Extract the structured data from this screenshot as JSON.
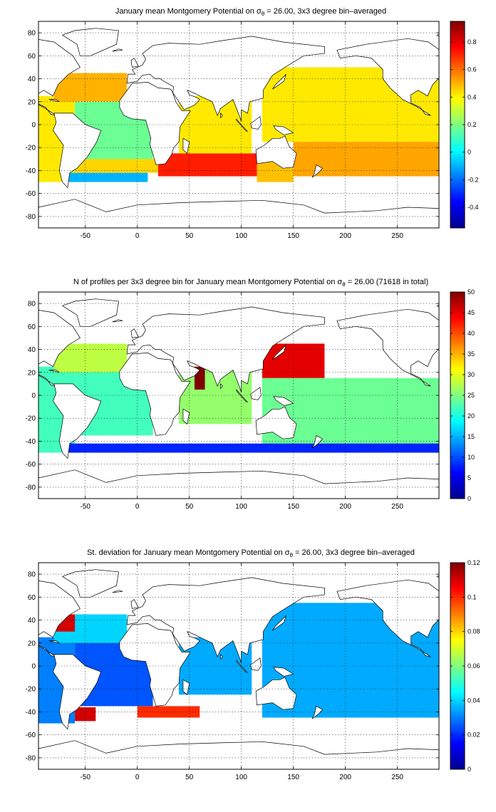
{
  "chart_data": [
    {
      "type": "heatmap",
      "title": {
        "prefix": "January mean Montgomery Potential on ",
        "sigma": "σ",
        "sub": "θ",
        "suffix": " = 26.00, 3x3 degree bin–averaged"
      },
      "x_ticks": [
        "-50",
        "0",
        "50",
        "100",
        "150",
        "200",
        "250"
      ],
      "y_ticks": [
        "80",
        "60",
        "40",
        "20",
        "0",
        "-20",
        "-40",
        "-60",
        "-80"
      ],
      "xlim": [
        -95,
        290
      ],
      "ylim": [
        -90,
        90
      ],
      "grid": true,
      "colormap": "jet",
      "clim": [
        -0.55,
        0.95
      ],
      "colorbar_ticks": [
        "0.8",
        "0.6",
        "0.4",
        "0.2",
        "0",
        "-0.2",
        "-0.4"
      ],
      "colorbar_values": [
        0.8,
        0.6,
        0.4,
        0.2,
        0,
        -0.2,
        -0.4
      ],
      "regions": [
        {
          "lon": [
            -95,
            -60
          ],
          "lat": [
            -50,
            25
          ],
          "value": 0.42
        },
        {
          "lon": [
            -80,
            -10
          ],
          "lat": [
            20,
            45
          ],
          "value": 0.5
        },
        {
          "lon": [
            -60,
            15
          ],
          "lat": [
            -35,
            20
          ],
          "value": 0.17
        },
        {
          "lon": [
            -60,
            20
          ],
          "lat": [
            -42,
            -30
          ],
          "value": 0.45
        },
        {
          "lon": [
            20,
            115
          ],
          "lat": [
            -45,
            -25
          ],
          "value": 0.72
        },
        {
          "lon": [
            40,
            110
          ],
          "lat": [
            -25,
            25
          ],
          "value": 0.42
        },
        {
          "lon": [
            115,
            150
          ],
          "lat": [
            -50,
            -30
          ],
          "value": 0.48
        },
        {
          "lon": [
            120,
            290
          ],
          "lat": [
            -15,
            50
          ],
          "value": 0.42
        },
        {
          "lon": [
            150,
            290
          ],
          "lat": [
            -45,
            -15
          ],
          "value": 0.52
        },
        {
          "lon": [
            -70,
            10
          ],
          "lat": [
            -50,
            -42
          ],
          "value": -0.1
        }
      ]
    },
    {
      "type": "heatmap",
      "title": {
        "prefix": "N of profiles per 3x3 degree bin for January mean Montgomery Potential on ",
        "sigma": "σ",
        "sub": "θ",
        "suffix": " = 26.00 (71618 in total)"
      },
      "x_ticks": [
        "-50",
        "0",
        "50",
        "100",
        "150",
        "200",
        "250"
      ],
      "y_ticks": [
        "80",
        "60",
        "40",
        "20",
        "0",
        "-20",
        "-40",
        "-60",
        "-80"
      ],
      "xlim": [
        -95,
        290
      ],
      "ylim": [
        -90,
        90
      ],
      "grid": true,
      "colormap": "jet",
      "clim": [
        0,
        50
      ],
      "colorbar_ticks": [
        "50",
        "45",
        "40",
        "35",
        "30",
        "25",
        "20",
        "15",
        "10",
        "5",
        "0"
      ],
      "colorbar_values": [
        50,
        45,
        40,
        35,
        30,
        25,
        20,
        15,
        10,
        5,
        0
      ],
      "total_profiles": 71618,
      "regions": [
        {
          "lon": [
            -95,
            -60
          ],
          "lat": [
            -50,
            25
          ],
          "value": 22
        },
        {
          "lon": [
            -80,
            -10
          ],
          "lat": [
            20,
            45
          ],
          "value": 28
        },
        {
          "lon": [
            -60,
            15
          ],
          "lat": [
            -35,
            20
          ],
          "value": 22
        },
        {
          "lon": [
            40,
            110
          ],
          "lat": [
            -25,
            25
          ],
          "value": 26
        },
        {
          "lon": [
            55,
            65
          ],
          "lat": [
            5,
            25
          ],
          "value": 50
        },
        {
          "lon": [
            120,
            180
          ],
          "lat": [
            15,
            45
          ],
          "value": 45
        },
        {
          "lon": [
            120,
            290
          ],
          "lat": [
            -45,
            15
          ],
          "value": 24
        },
        {
          "lon": [
            -70,
            290
          ],
          "lat": [
            -50,
            -42
          ],
          "value": 8
        }
      ]
    },
    {
      "type": "heatmap",
      "title": {
        "prefix": "St. deviation for January mean Montgomery Potential on ",
        "sigma": "σ",
        "sub": "θ",
        "suffix": " = 26.00, 3x3 degree bin–averaged"
      },
      "x_ticks": [
        "-50",
        "0",
        "50",
        "100",
        "150",
        "200",
        "250"
      ],
      "y_ticks": [
        "80",
        "60",
        "40",
        "20",
        "0",
        "-20",
        "-40",
        "-60",
        "-80"
      ],
      "xlim": [
        -95,
        290
      ],
      "ylim": [
        -90,
        90
      ],
      "grid": true,
      "colormap": "jet",
      "clim": [
        0,
        0.12
      ],
      "colorbar_ticks": [
        "0.12",
        "0.1",
        "0.08",
        "0.06",
        "0.04",
        "0.02",
        "0"
      ],
      "colorbar_values": [
        0.12,
        0.1,
        0.08,
        0.06,
        0.04,
        0.02,
        0
      ],
      "regions": [
        {
          "lon": [
            -95,
            -60
          ],
          "lat": [
            -50,
            25
          ],
          "value": 0.03
        },
        {
          "lon": [
            -80,
            -10
          ],
          "lat": [
            20,
            45
          ],
          "value": 0.04
        },
        {
          "lon": [
            -60,
            15
          ],
          "lat": [
            -35,
            20
          ],
          "value": 0.025
        },
        {
          "lon": [
            -60,
            -40
          ],
          "lat": [
            -48,
            -36
          ],
          "value": 0.11
        },
        {
          "lon": [
            0,
            60
          ],
          "lat": [
            -45,
            -35
          ],
          "value": 0.1
        },
        {
          "lon": [
            40,
            110
          ],
          "lat": [
            -25,
            25
          ],
          "value": 0.035
        },
        {
          "lon": [
            120,
            290
          ],
          "lat": [
            -45,
            55
          ],
          "value": 0.035
        },
        {
          "lon": [
            -80,
            -60
          ],
          "lat": [
            30,
            45
          ],
          "value": 0.11
        }
      ]
    }
  ]
}
